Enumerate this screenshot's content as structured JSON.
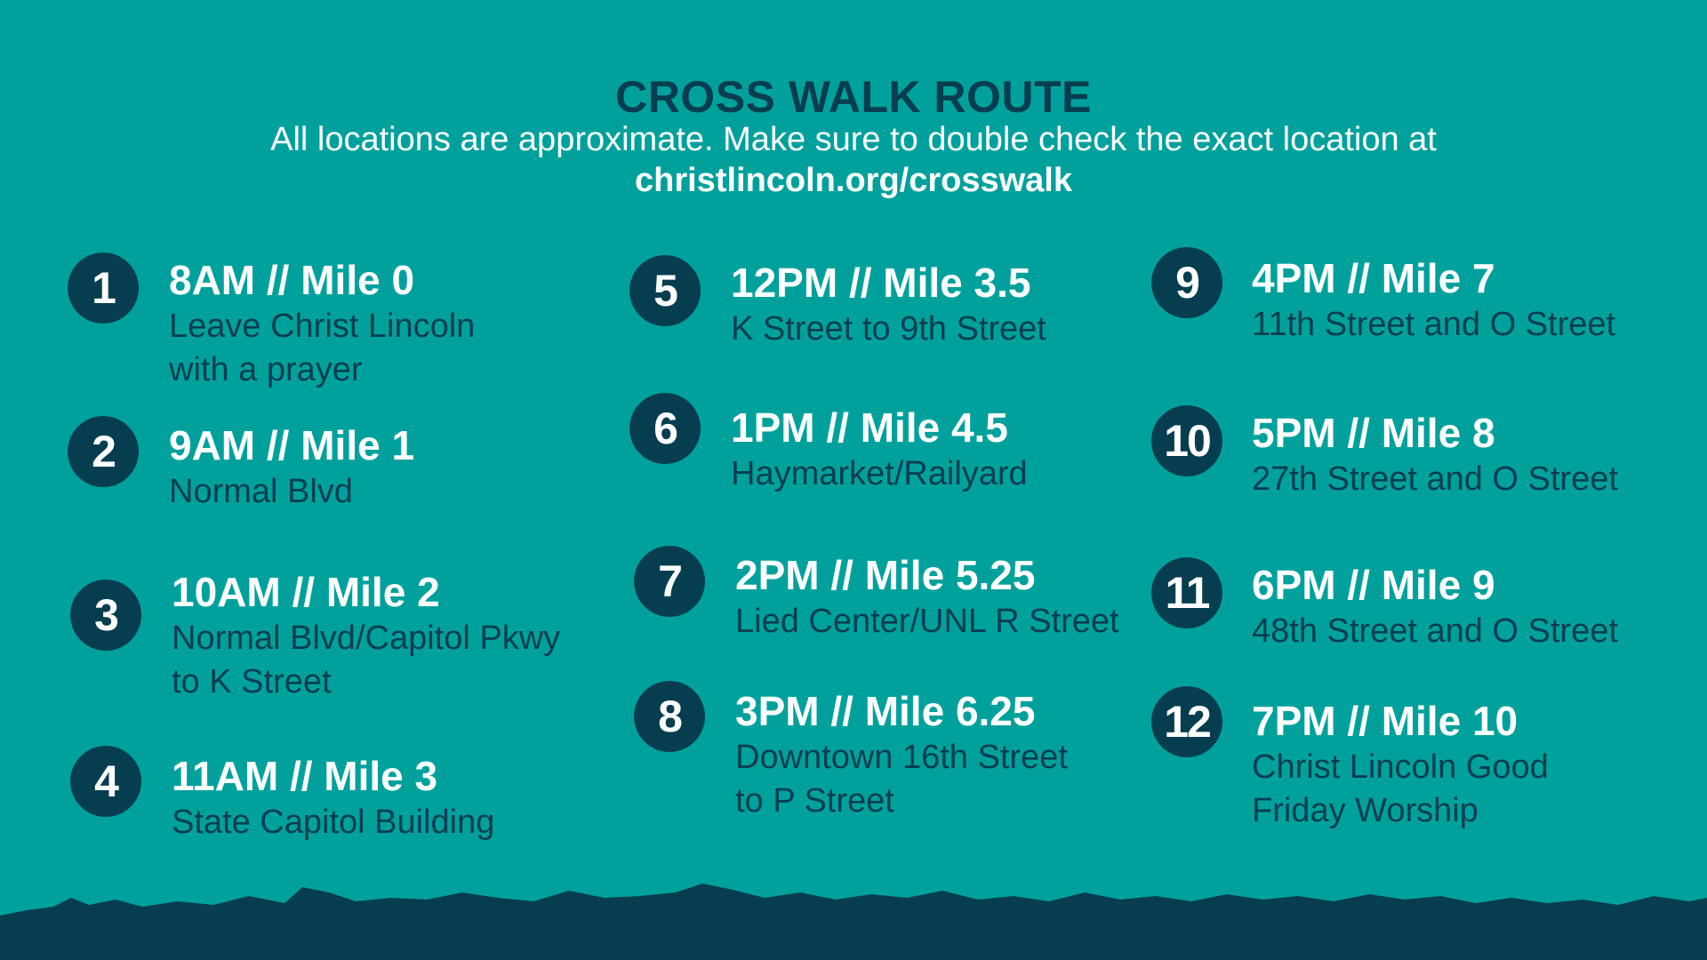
{
  "header": {
    "title": "CROSS WALK ROUTE",
    "subtitle": "All locations are approximate. Make sure to double check the exact location at",
    "url": "christlincoln.org/crosswalk"
  },
  "colors": {
    "background": "#00a19c",
    "navy": "#063e50",
    "text_light": "#ffffff"
  },
  "stops": [
    {
      "num": "1",
      "title": "8AM // Mile 0",
      "desc": "Leave Christ Lincoln\nwith a prayer"
    },
    {
      "num": "2",
      "title": "9AM // Mile 1",
      "desc": "Normal Blvd"
    },
    {
      "num": "3",
      "title": "10AM // Mile 2",
      "desc": "Normal Blvd/Capitol Pkwy\nto K Street"
    },
    {
      "num": "4",
      "title": "11AM // Mile 3",
      "desc": "State Capitol Building"
    },
    {
      "num": "5",
      "title": "12PM // Mile 3.5",
      "desc": "K Street to 9th Street"
    },
    {
      "num": "6",
      "title": "1PM // Mile 4.5",
      "desc": "Haymarket/Railyard"
    },
    {
      "num": "7",
      "title": "2PM // Mile 5.25",
      "desc": "Lied Center/UNL R Street"
    },
    {
      "num": "8",
      "title": "3PM // Mile 6.25",
      "desc": "Downtown 16th Street\nto P Street"
    },
    {
      "num": "9",
      "title": "4PM // Mile 7",
      "desc": "11th Street and O Street"
    },
    {
      "num": "10",
      "title": "5PM // Mile 8",
      "desc": "27th Street and O Street"
    },
    {
      "num": "11",
      "title": "6PM // Mile 9",
      "desc": "48th Street and O Street"
    },
    {
      "num": "12",
      "title": "7PM // Mile 10",
      "desc": "Christ Lincoln Good\nFriday Worship"
    }
  ]
}
